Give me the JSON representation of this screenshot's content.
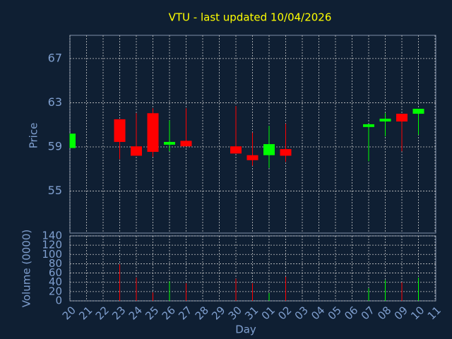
{
  "chart_data": {
    "type": "candlestick",
    "title": "VTU - last updated 10/04/2026",
    "ylabel": "Price",
    "xlabel": "Day",
    "categories": [
      "20",
      "21",
      "22",
      "23",
      "24",
      "25",
      "26",
      "27",
      "28",
      "29",
      "30",
      "31",
      "01",
      "02",
      "03",
      "04",
      "05",
      "06",
      "07",
      "08",
      "09",
      "10",
      "11"
    ],
    "open": [
      58.9,
      null,
      null,
      61.5,
      59.05,
      62.05,
      59.2,
      59.55,
      null,
      null,
      59.05,
      58.25,
      58.25,
      58.8,
      null,
      null,
      null,
      null,
      60.8,
      61.3,
      62.0,
      62.0,
      null
    ],
    "high": [
      60.2,
      null,
      null,
      61.5,
      62.05,
      62.5,
      61.4,
      62.5,
      null,
      null,
      62.7,
      60.3,
      60.9,
      61.1,
      null,
      null,
      null,
      null,
      61.05,
      62.05,
      62.0,
      62.45,
      null
    ],
    "low": [
      58.9,
      null,
      null,
      57.9,
      58.2,
      58.1,
      58.6,
      59.05,
      null,
      null,
      58.4,
      57.3,
      57.1,
      57.65,
      null,
      null,
      null,
      null,
      57.7,
      59.95,
      58.6,
      60.1,
      null
    ],
    "close": [
      60.2,
      null,
      null,
      59.45,
      58.2,
      58.55,
      59.45,
      59.05,
      null,
      null,
      58.4,
      57.8,
      59.25,
      58.2,
      null,
      null,
      null,
      null,
      61.05,
      61.55,
      61.3,
      62.45,
      null
    ],
    "up_color": "#00ff00",
    "down_color": "#ff0000",
    "ylim": [
      51.2,
      69.1
    ],
    "yticks": [
      55,
      59,
      63,
      67
    ],
    "grid": true,
    "volume": {
      "ylabel": "Volume (0000)",
      "values": [
        null,
        null,
        null,
        79,
        50,
        18,
        42,
        38,
        null,
        null,
        48,
        38,
        17,
        52,
        null,
        null,
        null,
        null,
        27,
        45,
        40,
        50,
        null
      ],
      "ylim": [
        0,
        140
      ],
      "yticks": [
        0,
        20,
        40,
        60,
        80,
        100,
        120,
        140
      ]
    }
  }
}
